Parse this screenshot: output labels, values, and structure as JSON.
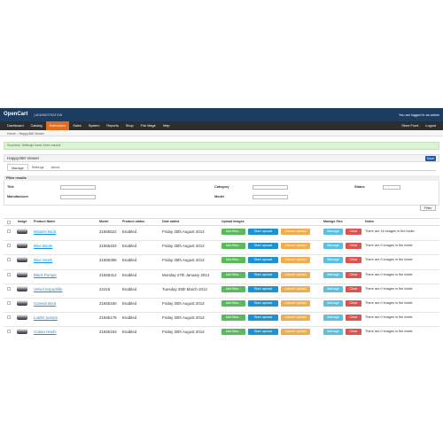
{
  "header": {
    "logo": "OpenCart",
    "admin_label": "| ADMINISTRATION",
    "logged_in": "You are logged in as admin"
  },
  "menu": [
    "Dashboard",
    "Catalog",
    "Extensions",
    "Sales",
    "System",
    "Reports",
    "Shop",
    "Fire Mage",
    "Help"
  ],
  "menu_right": [
    "Store Front",
    "Logout"
  ],
  "breadcrumb": "Home :: Happy360 Viewer",
  "alert": "Success: Settings have been saved.",
  "panel": {
    "title": "Happy360 Viewer",
    "save": "Save"
  },
  "tabs": [
    "Manage",
    "Settings",
    "About"
  ],
  "filter": {
    "heading": "Filter results",
    "title": "Title",
    "category": "Category",
    "status": "Status",
    "manufacturer": "Manufacturer",
    "model": "Model",
    "button": "Filter"
  },
  "table": {
    "headers": [
      "Image",
      "Product Name",
      "Model",
      "Product status",
      "Date added",
      "Upload images",
      "Manage files",
      "Notes"
    ],
    "buttons": [
      "Add files...",
      "Start upload",
      "Cancel upload",
      "Manage",
      "Clear"
    ],
    "rows": [
      [
        "Modern Boot",
        "21565522",
        "Enabled",
        "Friday 30th August 2013",
        "There are 16 images in the folder"
      ],
      [
        "Blue Boots",
        "21565403",
        "Enabled",
        "Friday 30th August 2013",
        "There are 0 images in the folder"
      ],
      [
        "Blue Heels",
        "21565395",
        "Enabled",
        "Friday 30th August 2013",
        "There are 0 images in the folder"
      ],
      [
        "Black Pumps",
        "21565312",
        "Enabled",
        "Monday 27th January 2014",
        "There are 0 images in the folder"
      ],
      [
        "Velvet Espadrille",
        "22415",
        "Enabled",
        "Tuesday 25th March 2014",
        "There are 0 images in the folder"
      ],
      [
        "Canvas Boot",
        "21565160",
        "Enabled",
        "Friday 30th August 2013",
        "There are 0 images in the folder"
      ],
      [
        "Loafer pumps",
        "21565179",
        "Enabled",
        "Friday 30th August 2013",
        "There are 0 images in the folder"
      ],
      [
        "Cuban Heels",
        "21565183",
        "Enabled",
        "Friday 30th August 2013",
        "There are 0 images in the folder"
      ]
    ]
  }
}
